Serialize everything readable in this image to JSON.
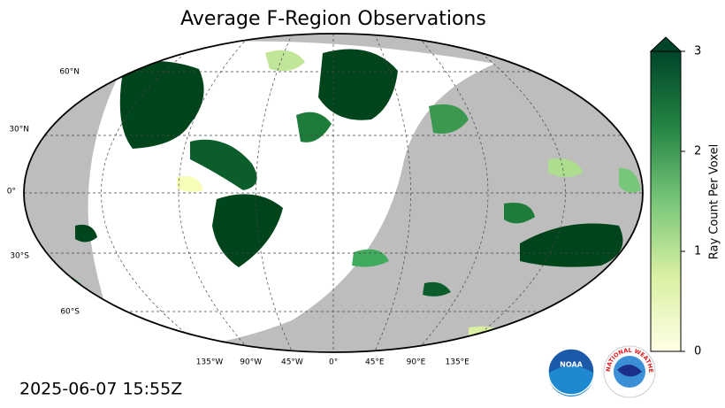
{
  "title": "Average F-Region Observations",
  "lat_labels": [
    "60°N",
    "30°N",
    "0°",
    "30°S",
    "60°S"
  ],
  "lon_labels": [
    "135°W",
    "90°W",
    "45°W",
    "0°",
    "45°E",
    "90°E",
    "135°E"
  ],
  "colorbar": {
    "label": "Ray Count Per Voxel",
    "lim": [
      0,
      3
    ],
    "ticks": [
      0,
      1,
      2,
      3
    ]
  },
  "timestamp": "2025-06-07 15:55Z",
  "noaa_logo": "NOAA",
  "nws_logo": "NATIONAL WEATHER SERVICE"
}
